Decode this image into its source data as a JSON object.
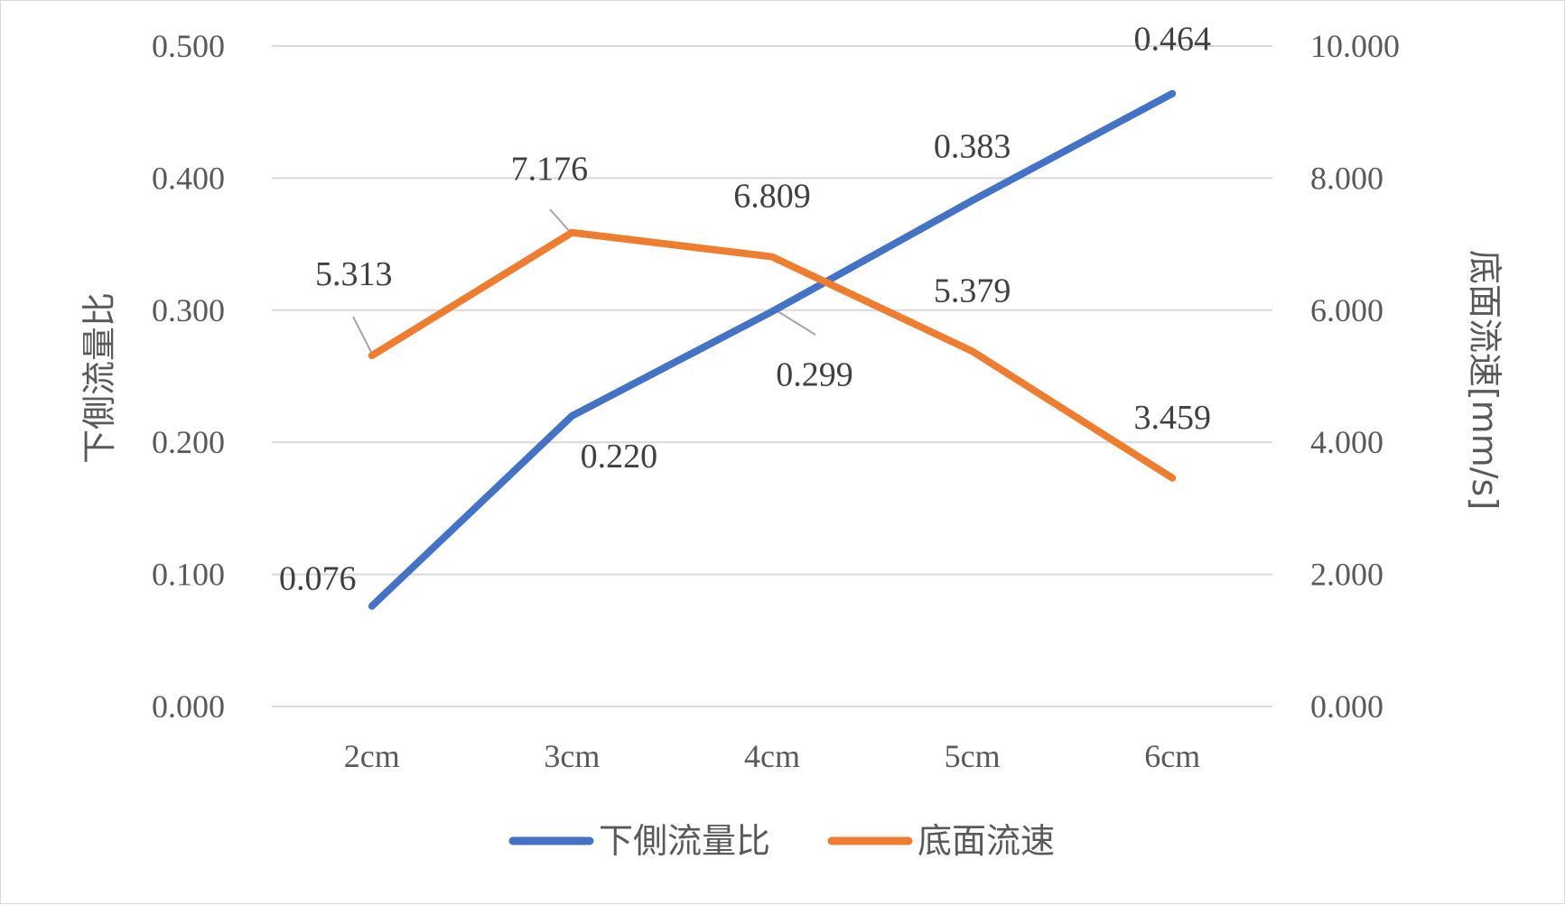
{
  "chart_data": {
    "type": "line",
    "categories": [
      "2cm",
      "3cm",
      "4cm",
      "5cm",
      "6cm"
    ],
    "series": [
      {
        "name": "下側流量比",
        "axis": "left",
        "color": "#4472C4",
        "values": [
          0.076,
          0.22,
          0.299,
          0.383,
          0.464
        ],
        "labels": [
          "0.076",
          "0.220",
          "0.299",
          "0.383",
          "0.464"
        ]
      },
      {
        "name": "底面流速",
        "axis": "right",
        "color": "#ED7D31",
        "values": [
          5.313,
          7.176,
          6.809,
          5.379,
          3.459
        ],
        "labels": [
          "5.313",
          "7.176",
          "6.809",
          "5.379",
          "3.459"
        ]
      }
    ],
    "y_left": {
      "label": "下側流量比",
      "range": [
        0,
        0.5
      ],
      "ticks": [
        "0.000",
        "0.100",
        "0.200",
        "0.300",
        "0.400",
        "0.500"
      ]
    },
    "y_right": {
      "label": "底面流速[mm/s]",
      "range": [
        0,
        10
      ],
      "ticks": [
        "0.000",
        "2.000",
        "4.000",
        "6.000",
        "8.000",
        "10.000"
      ]
    },
    "gridlines": true,
    "legend_position": "bottom"
  }
}
